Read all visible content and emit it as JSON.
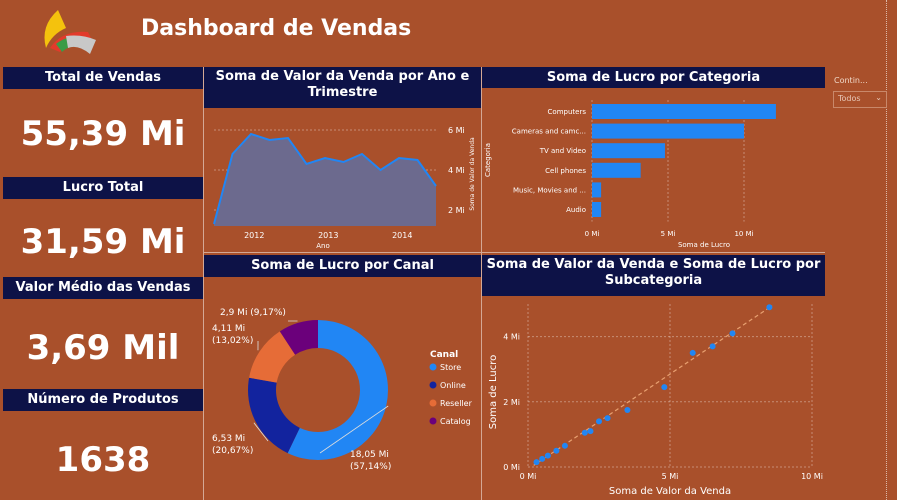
{
  "header": {
    "title": "Dashboard de Vendas",
    "logo_icon": "company-logo-icon"
  },
  "kpis": [
    {
      "label": "Total de Vendas",
      "value": "55,39 Mi"
    },
    {
      "label": "Lucro Total",
      "value": "31,59 Mi"
    },
    {
      "label": "Valor Médio das Vendas",
      "value": "3,69 Mil"
    },
    {
      "label": "Número de Produtos",
      "value": "1638"
    }
  ],
  "slicer": {
    "label": "Contin...",
    "value": "Todos"
  },
  "colors": {
    "background": "#A9502B",
    "panel_header": "#0D1247",
    "bar": "#2186F4",
    "area_line": "#2186F4",
    "area_fill": "#6C6A8E"
  },
  "chart_data": [
    {
      "id": "area",
      "type": "area",
      "title": "Soma de Valor da Venda por Ano e Trimestre",
      "xlabel": "Ano",
      "ylabel": "Soma de Valor da Venda",
      "x_ticks": [
        "2012",
        "2013",
        "2014"
      ],
      "y_ticks": [
        "2 Mi",
        "4 Mi",
        "6 Mi"
      ],
      "ylim": [
        1.2,
        6.5
      ],
      "x": [
        "2011 Q4",
        "2012 Q1",
        "2012 Q2",
        "2012 Q3",
        "2012 Q4",
        "2013 Q1",
        "2013 Q2",
        "2013 Q3",
        "2013 Q4",
        "2014 Q1",
        "2014 Q2",
        "2014 Q3",
        "2014 Q4"
      ],
      "values": [
        1.3,
        4.8,
        5.8,
        5.5,
        5.6,
        4.3,
        4.6,
        4.4,
        4.8,
        4.0,
        4.6,
        4.5,
        3.2
      ]
    },
    {
      "id": "bar",
      "type": "bar",
      "orientation": "horizontal",
      "title": "Soma de Lucro por Categoria",
      "xlabel": "Soma de Lucro",
      "ylabel": "Categoria",
      "x_ticks": [
        "0 Mi",
        "5 Mi",
        "10 Mi"
      ],
      "xlim": [
        0,
        12.5
      ],
      "categories": [
        "Computers",
        "Cameras and camc...",
        "TV and Video",
        "Cell phones",
        "Music, Movies and ...",
        "Audio"
      ],
      "values": [
        12.1,
        10.0,
        4.8,
        3.2,
        0.6,
        0.6
      ]
    },
    {
      "id": "donut",
      "type": "pie",
      "title": "Soma de Lucro por Canal",
      "legend_title": "Canal",
      "legend_position": "right",
      "series": [
        {
          "name": "Store",
          "value": 18.05,
          "label": "18,05 Mi",
          "pct": "(57,14%)",
          "color": "#2186F4"
        },
        {
          "name": "Online",
          "value": 6.53,
          "label": "6,53 Mi",
          "pct": "(20,67%)",
          "color": "#12239E"
        },
        {
          "name": "Reseller",
          "value": 4.11,
          "label": "4,11 Mi",
          "pct": "(13,02%)",
          "color": "#E66C37"
        },
        {
          "name": "Catalog",
          "value": 2.9,
          "label": "2,9 Mi (9,17%)",
          "pct": "",
          "color": "#6B007B"
        }
      ]
    },
    {
      "id": "scatter",
      "type": "scatter",
      "title": "Soma de Valor da Venda e Soma de Lucro por Subcategoria",
      "xlabel": "Soma de Valor da Venda",
      "ylabel": "Soma de Lucro",
      "x_ticks": [
        "0 Mi",
        "5 Mi",
        "10 Mi"
      ],
      "y_ticks": [
        "0 Mi",
        "2 Mi",
        "4 Mi"
      ],
      "xlim": [
        0,
        10
      ],
      "ylim": [
        0,
        5
      ],
      "trendline": true,
      "points": [
        [
          0.3,
          0.15
        ],
        [
          0.5,
          0.25
        ],
        [
          0.7,
          0.35
        ],
        [
          1.0,
          0.5
        ],
        [
          1.3,
          0.65
        ],
        [
          2.0,
          1.05
        ],
        [
          2.2,
          1.1
        ],
        [
          2.5,
          1.4
        ],
        [
          2.8,
          1.5
        ],
        [
          3.5,
          1.75
        ],
        [
          4.8,
          2.45
        ],
        [
          5.8,
          3.5
        ],
        [
          6.5,
          3.7
        ],
        [
          7.2,
          4.1
        ],
        [
          8.5,
          4.9
        ]
      ]
    }
  ]
}
